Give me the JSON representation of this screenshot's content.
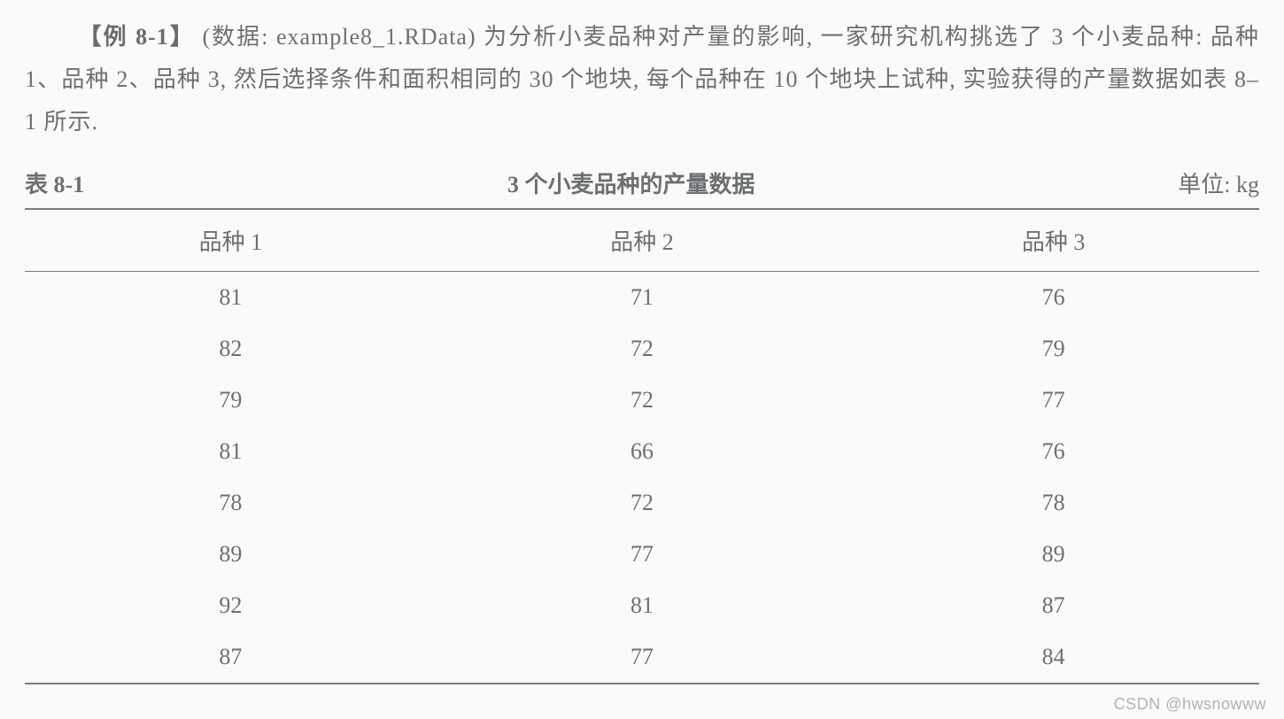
{
  "paragraph": {
    "label_open": "【例 8-1】",
    "dataset_prefix": "(数据: ",
    "dataset_name": "example8_1.RData",
    "dataset_suffix": ") ",
    "sentence1": "为分析小麦品种对产量的影响, 一家研究机构挑选了 3 个小麦品种: 品种 1、品种 2、品种 3, 然后选择条件和面积相同的 30 个地块, 每个品种在 10 个地块上试种, 实验获得的产量数据如表 8–1 所示."
  },
  "caption": {
    "left": "表 8-1",
    "mid": "3 个小麦品种的产量数据",
    "right": "单位: kg"
  },
  "table": {
    "columns": [
      "品种 1",
      "品种 2",
      "品种 3"
    ],
    "rows": [
      [
        81,
        71,
        76
      ],
      [
        82,
        72,
        79
      ],
      [
        79,
        72,
        77
      ],
      [
        81,
        66,
        76
      ],
      [
        78,
        72,
        78
      ],
      [
        89,
        77,
        89
      ],
      [
        92,
        81,
        87
      ],
      [
        87,
        77,
        84
      ]
    ],
    "border_color": "#7a7c7e",
    "text_color": "#6d7072",
    "font_size_pt": 20
  },
  "watermark": "CSDN @hwsnowww",
  "colors": {
    "background": "#fbfafa",
    "text": "#6d7072"
  }
}
